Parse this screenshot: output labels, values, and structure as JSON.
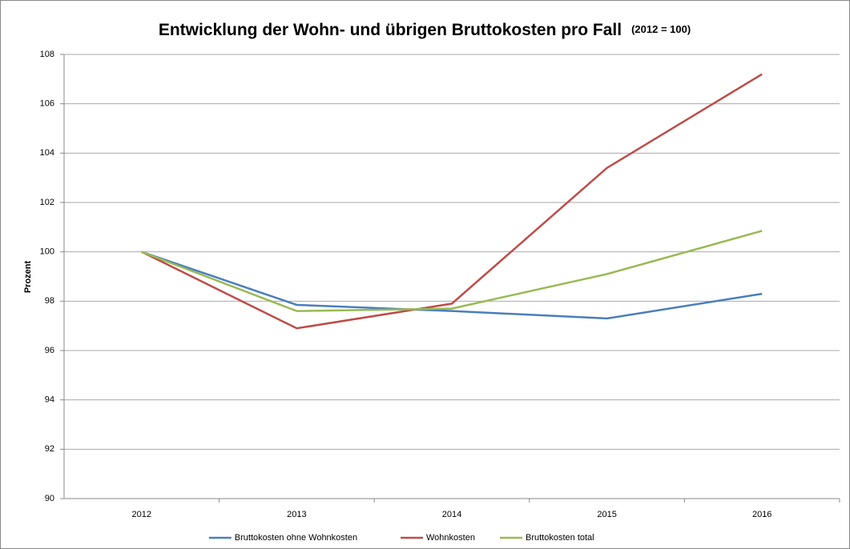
{
  "chart_data": {
    "type": "line",
    "title": "Entwicklung der Wohn- und übrigen Bruttokosten pro Fall",
    "subtitle": "(2012 = 100)",
    "y_label": "Prozent",
    "categories": [
      "2012",
      "2013",
      "2014",
      "2015",
      "2016"
    ],
    "series": [
      {
        "name": "Bruttokosten ohne Wohnkosten",
        "color": "#4a7ebb",
        "values": [
          100,
          97.85,
          97.6,
          97.3,
          98.3
        ]
      },
      {
        "name": "Wohnkosten",
        "color": "#be4b48",
        "values": [
          100,
          96.9,
          97.9,
          103.4,
          107.2
        ]
      },
      {
        "name": "Bruttokosten total",
        "color": "#98b954",
        "values": [
          100,
          97.6,
          97.7,
          99.1,
          100.85
        ]
      }
    ],
    "ylim": [
      90,
      108
    ],
    "yticks": [
      90,
      92,
      94,
      96,
      98,
      100,
      102,
      104,
      106,
      108
    ],
    "grid": true,
    "legend": "bottom"
  }
}
